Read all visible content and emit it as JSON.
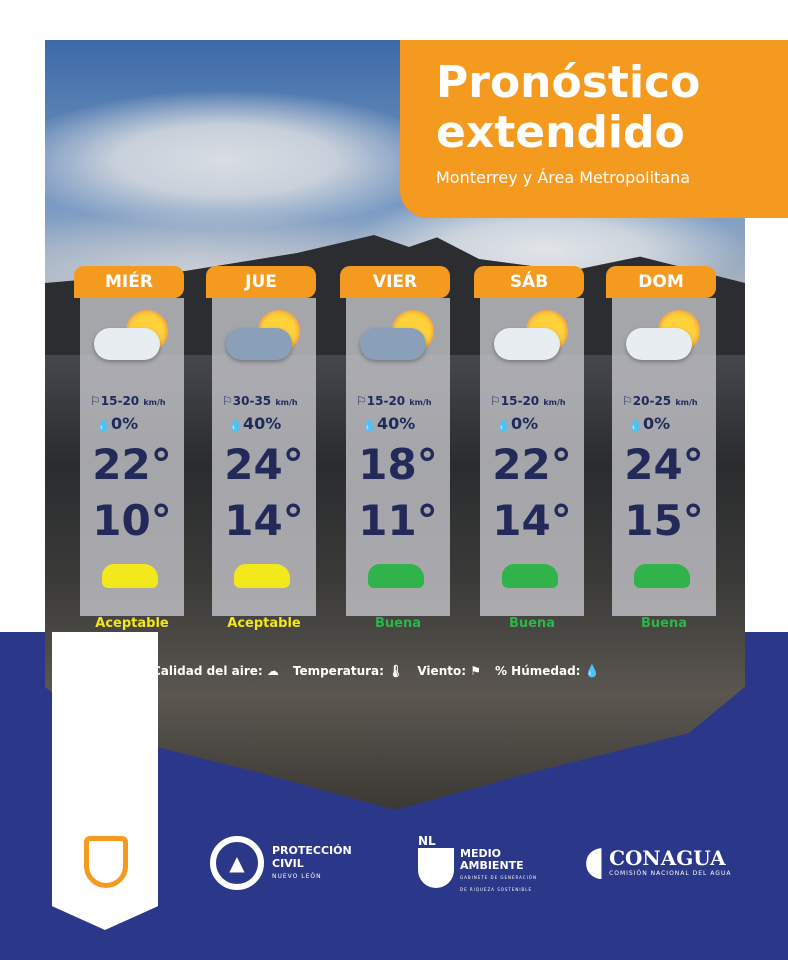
{
  "header": {
    "title_line1": "Pronóstico",
    "title_line2": "extendido",
    "subtitle": "Monterrey y Área Metropolitana"
  },
  "days": [
    {
      "label": "MIÉR",
      "icon": "partly-cloudy-sun",
      "wind": "15-20",
      "wind_unit": "km/h",
      "humidity": "0%",
      "max": "22°",
      "min": "10°",
      "air_quality": "Aceptable",
      "aq_color": "#f2e81c"
    },
    {
      "label": "JUE",
      "icon": "windy-cloud-sun",
      "wind": "30-35",
      "wind_unit": "km/h",
      "humidity": "40%",
      "max": "24°",
      "min": "14°",
      "air_quality": "Aceptable",
      "aq_color": "#f2e81c"
    },
    {
      "label": "VIER",
      "icon": "rain-cloud-sun",
      "wind": "15-20",
      "wind_unit": "km/h",
      "humidity": "40%",
      "max": "18°",
      "min": "11°",
      "air_quality": "Buena",
      "aq_color": "#2fb34a"
    },
    {
      "label": "SÁB",
      "icon": "cloud-sun",
      "wind": "15-20",
      "wind_unit": "km/h",
      "humidity": "0%",
      "max": "22°",
      "min": "14°",
      "air_quality": "Buena",
      "aq_color": "#2fb34a"
    },
    {
      "label": "DOM",
      "icon": "cloud-sun",
      "wind": "20-25",
      "wind_unit": "km/h",
      "humidity": "0%",
      "max": "24°",
      "min": "15°",
      "air_quality": "Buena",
      "aq_color": "#2fb34a"
    }
  ],
  "legend": {
    "air": "Calidad del aire:",
    "temp": "Temperatura:",
    "wind": "Viento:",
    "humidity": "% Húmedad:"
  },
  "logos": {
    "pc1": "PROTECCIÓN",
    "pc2": "CIVIL",
    "pc3": "NUEVO LEÓN",
    "ma0": "NL",
    "ma1": "MEDIO",
    "ma2": "AMBIENTE",
    "ma3": "GABINETE DE GENERACIÓN DE RIQUEZA SOSTENIBLE",
    "cn1": "CONAGUA",
    "cn2": "COMISIÓN NACIONAL DEL AGUA"
  },
  "colors": {
    "orange": "#f39a1f",
    "navy": "#2b3889",
    "text": "#232a5a"
  }
}
